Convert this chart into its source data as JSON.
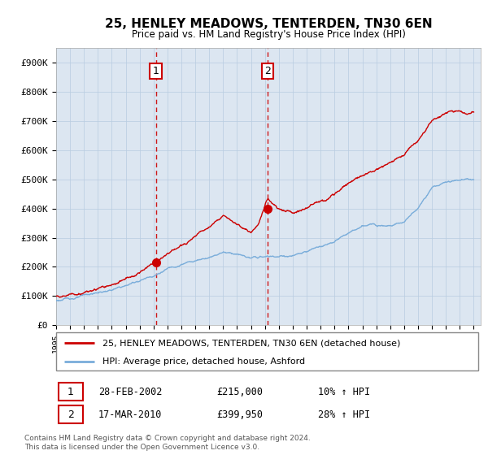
{
  "title": "25, HENLEY MEADOWS, TENTERDEN, TN30 6EN",
  "subtitle": "Price paid vs. HM Land Registry's House Price Index (HPI)",
  "ylim": [
    0,
    950000
  ],
  "yticks": [
    0,
    100000,
    200000,
    300000,
    400000,
    500000,
    600000,
    700000,
    800000,
    900000
  ],
  "ytick_labels": [
    "£0",
    "£100K",
    "£200K",
    "£300K",
    "£400K",
    "£500K",
    "£600K",
    "£700K",
    "£800K",
    "£900K"
  ],
  "transaction1": {
    "date_num": 2002.16,
    "price": 215000,
    "label": "1",
    "date_str": "28-FEB-2002",
    "price_str": "£215,000",
    "hpi_str": "10% ↑ HPI"
  },
  "transaction2": {
    "date_num": 2010.21,
    "price": 399950,
    "label": "2",
    "date_str": "17-MAR-2010",
    "price_str": "£399,950",
    "hpi_str": "28% ↑ HPI"
  },
  "legend_line1": "25, HENLEY MEADOWS, TENTERDEN, TN30 6EN (detached house)",
  "legend_line2": "HPI: Average price, detached house, Ashford",
  "footer1": "Contains HM Land Registry data © Crown copyright and database right 2024.",
  "footer2": "This data is licensed under the Open Government Licence v3.0.",
  "red_color": "#cc0000",
  "blue_color": "#7aadda",
  "plot_bg": "#dce6f1",
  "grid_color": "#b8cce0",
  "vline_color": "#cc0000",
  "label_box_color": "#cc0000"
}
